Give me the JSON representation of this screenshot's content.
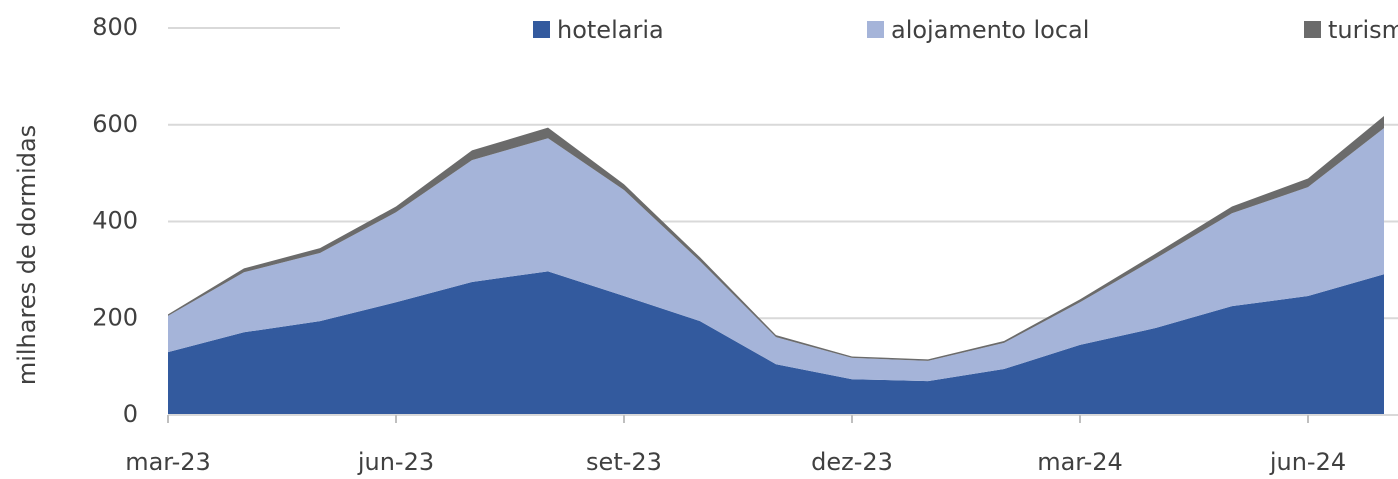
{
  "chart_data": {
    "type": "stacked_area",
    "y_label": "milhares de dormidas",
    "categories": [
      "mar-23",
      null,
      null,
      "jun-23",
      null,
      null,
      "set-23",
      null,
      null,
      "dez-23",
      null,
      null,
      "mar-24",
      null,
      null,
      "jun-24",
      null
    ],
    "series": [
      {
        "name": "hotelaria",
        "color": "#335a9e",
        "values": [
          130,
          171,
          194,
          233,
          275,
          297,
          246,
          194,
          105,
          74,
          70,
          95,
          145,
          180,
          225,
          246,
          291
        ]
      },
      {
        "name": "alojamento local",
        "color": "#a5b4d9",
        "values": [
          75,
          124,
          141,
          186,
          252,
          275,
          219,
          124,
          56,
          44,
          42,
          54,
          88,
          144,
          192,
          225,
          302
        ]
      },
      {
        "name": "turism",
        "color": "#6b6b6b",
        "values": [
          3,
          8,
          10,
          12,
          20,
          22,
          12,
          8,
          4,
          3,
          3,
          4,
          6,
          10,
          14,
          18,
          25
        ]
      }
    ],
    "ylim": [
      0,
      800
    ],
    "yticks": [
      0,
      200,
      400,
      600,
      800
    ],
    "grid": true,
    "legend": "top"
  }
}
